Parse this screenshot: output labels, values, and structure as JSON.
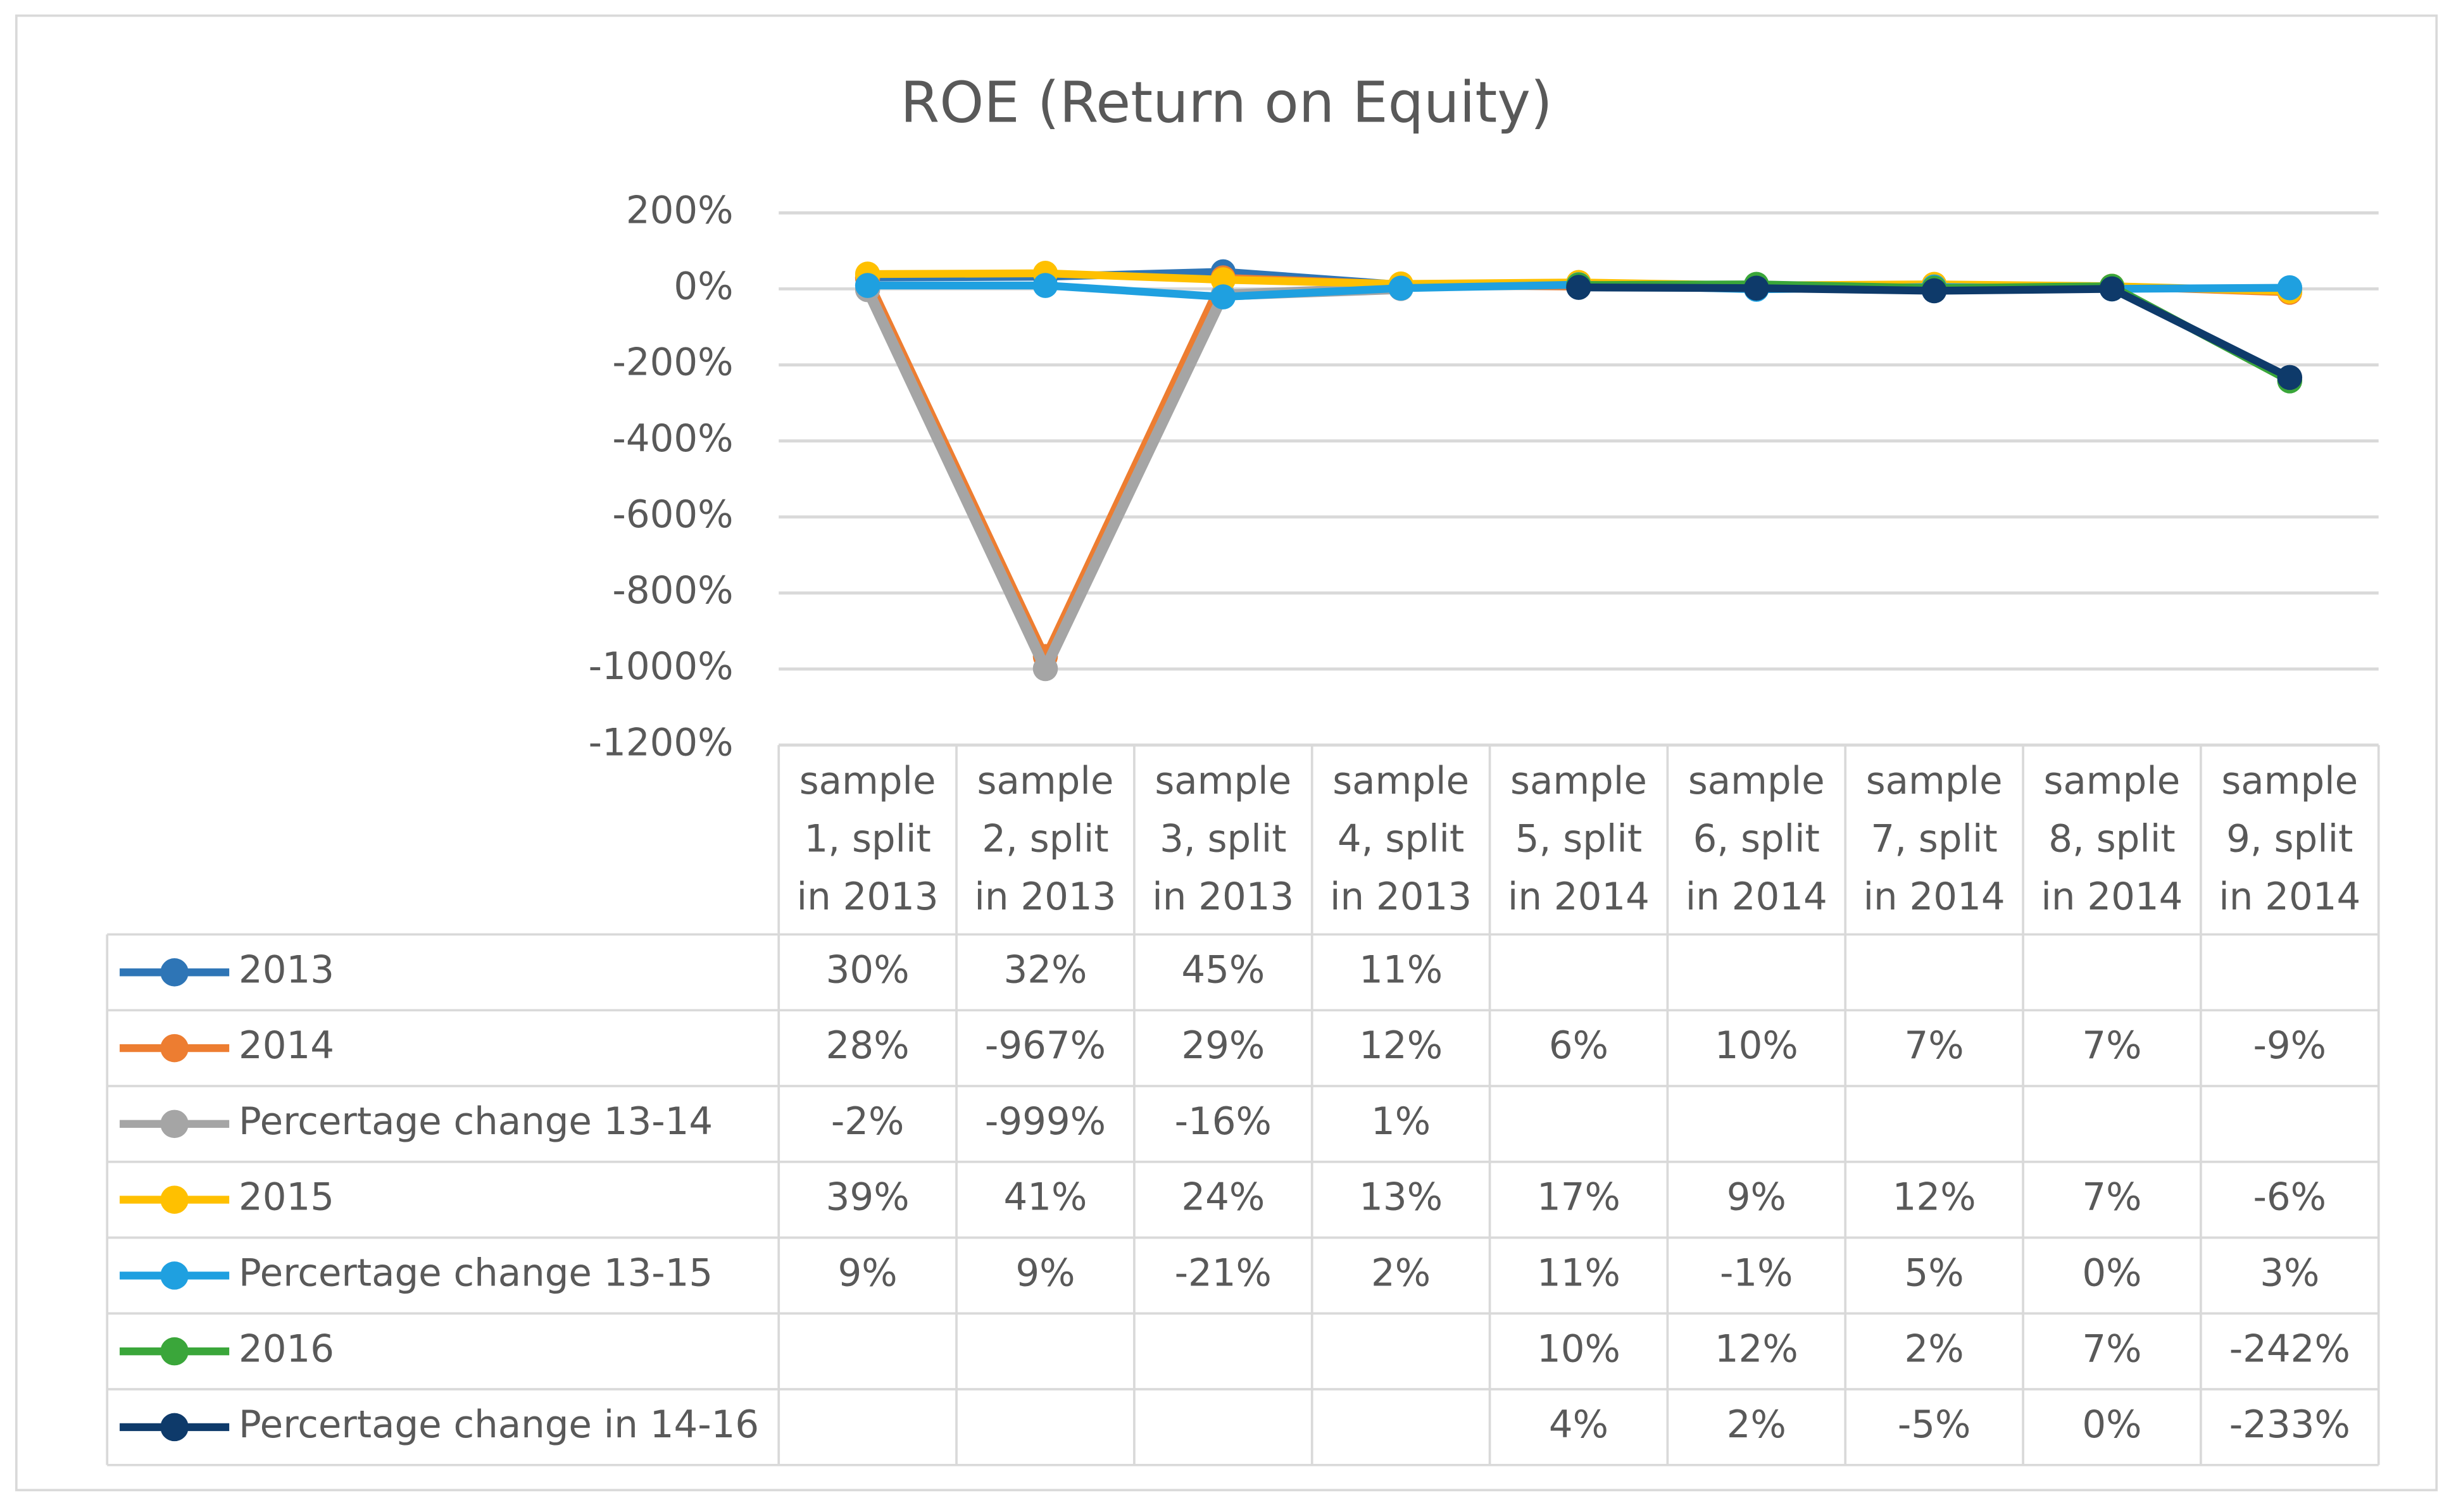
{
  "chart_data": {
    "type": "line",
    "title": "ROE (Return on Equity)",
    "categories": [
      "sample 1, split in 2013",
      "sample 2, split in 2013",
      "sample 3, split in 2013",
      "sample 4, split in 2013",
      "sample 5, split in 2014",
      "sample 6, split in 2014",
      "sample 7, split in 2014",
      "sample 8, split in 2014",
      "sample 9, split in 2014"
    ],
    "series": [
      {
        "name": "2013",
        "color": "#2e75b6",
        "values": [
          30,
          32,
          45,
          11,
          null,
          null,
          null,
          null,
          null
        ],
        "value_labels": [
          "30%",
          "32%",
          "45%",
          "11%",
          null,
          null,
          null,
          null,
          null
        ]
      },
      {
        "name": "2014",
        "color": "#ed7d31",
        "values": [
          28,
          -967,
          29,
          12,
          6,
          10,
          7,
          7,
          -9
        ],
        "value_labels": [
          "28%",
          "-967%",
          "29%",
          "12%",
          "6%",
          "10%",
          "7%",
          "7%",
          "-9%"
        ]
      },
      {
        "name": "Percertage change 13-14",
        "color": "#a5a5a5",
        "values": [
          -2,
          -999,
          -16,
          1,
          null,
          null,
          null,
          null,
          null
        ],
        "value_labels": [
          "-2%",
          "-999%",
          "-16%",
          "1%",
          null,
          null,
          null,
          null,
          null
        ]
      },
      {
        "name": "2015",
        "color": "#ffc000",
        "values": [
          39,
          41,
          24,
          13,
          17,
          9,
          12,
          7,
          -6
        ],
        "value_labels": [
          "39%",
          "41%",
          "24%",
          "13%",
          "17%",
          "9%",
          "12%",
          "7%",
          "-6%"
        ]
      },
      {
        "name": "Percertage change 13-15",
        "color": "#1fa0e0",
        "values": [
          9,
          9,
          -21,
          2,
          11,
          -1,
          5,
          0,
          3
        ],
        "value_labels": [
          "9%",
          "9%",
          "-21%",
          "2%",
          "11%",
          "-1%",
          "5%",
          "0%",
          "3%"
        ]
      },
      {
        "name": "2016",
        "color": "#3aa63a",
        "values": [
          null,
          null,
          null,
          null,
          10,
          12,
          2,
          7,
          -242
        ],
        "value_labels": [
          null,
          null,
          null,
          null,
          "10%",
          "12%",
          "2%",
          "7%",
          "-242%"
        ]
      },
      {
        "name": "Percertage change in 14-16",
        "color": "#0e3a6a",
        "values": [
          null,
          null,
          null,
          null,
          4,
          2,
          -5,
          0,
          -233
        ],
        "value_labels": [
          null,
          null,
          null,
          null,
          "4%",
          "2%",
          "-5%",
          "0%",
          "-233%"
        ]
      }
    ],
    "ylim": [
      -1200,
      200
    ],
    "yticks": [
      {
        "value": 200,
        "label": "200%"
      },
      {
        "value": 0,
        "label": "0%"
      },
      {
        "value": -200,
        "label": "-200%"
      },
      {
        "value": -400,
        "label": "-400%"
      },
      {
        "value": -600,
        "label": "-600%"
      },
      {
        "value": -800,
        "label": "-800%"
      },
      {
        "value": -1000,
        "label": "-1000%"
      },
      {
        "value": -1200,
        "label": "-1200%"
      }
    ],
    "grid": true
  }
}
